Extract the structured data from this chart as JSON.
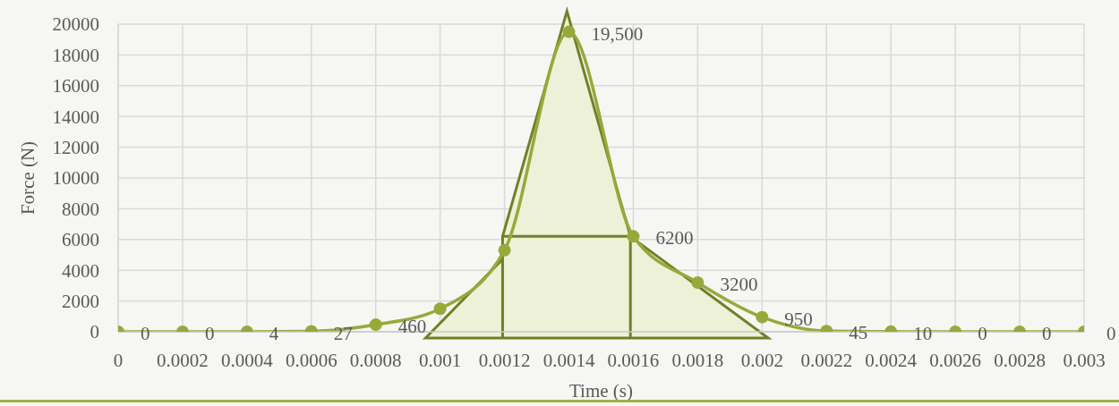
{
  "chart_data": {
    "type": "line",
    "xlabel": "Time (s)",
    "ylabel": "Force (N)",
    "x": [
      0,
      0.0002,
      0.0004,
      0.0006,
      0.0008,
      0.001,
      0.0012,
      0.0014,
      0.0016,
      0.0018,
      0.002,
      0.0022,
      0.0024,
      0.0026,
      0.0028,
      0.003
    ],
    "values": [
      0,
      0,
      4,
      27,
      460,
      1500,
      5300,
      19500,
      6200,
      3200,
      950,
      45,
      10,
      0,
      0,
      0
    ],
    "value_labels": [
      "0",
      "0",
      "4",
      "27",
      "460",
      null,
      null,
      "19,500",
      "6200",
      "3200",
      "950",
      "45",
      "10",
      "0",
      "0",
      "0"
    ],
    "color": "#98a83b",
    "xlim": [
      0,
      0.003
    ],
    "xticks": [
      0,
      0.0002,
      0.0004,
      0.0006,
      0.0008,
      0.001,
      0.0012,
      0.0014,
      0.0016,
      0.0018,
      0.002,
      0.0022,
      0.0024,
      0.0026,
      0.0028,
      0.003
    ],
    "ylim": [
      0,
      20000
    ],
    "yticks": [
      0,
      2000,
      4000,
      6000,
      8000,
      10000,
      12000,
      14000,
      16000,
      18000,
      20000
    ],
    "grid": true,
    "marker": "circle"
  }
}
